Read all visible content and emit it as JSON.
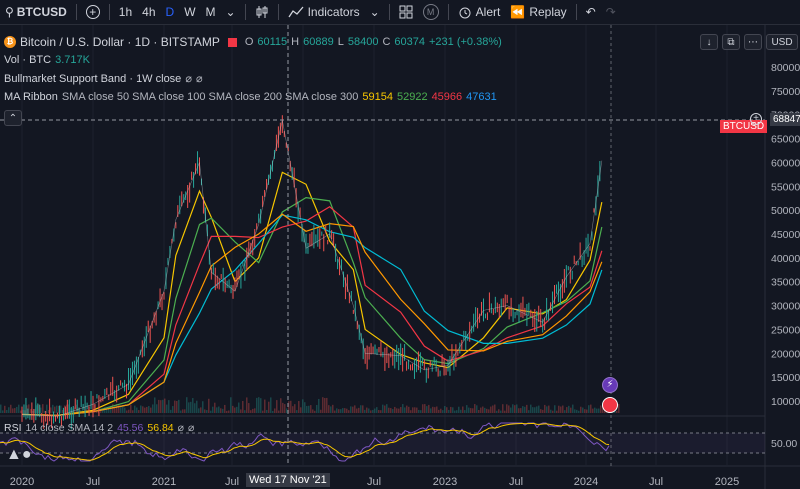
{
  "toolbar": {
    "symbol": "BTCUSD",
    "intervals": [
      "1h",
      "4h",
      "D",
      "W",
      "M"
    ],
    "active_interval": "D",
    "indicators_label": "Indicators",
    "alert_label": "Alert",
    "replay_label": "Replay",
    "currency": "USD"
  },
  "legend": {
    "title": "Bitcoin / U.S. Dollar · 1D · BITSTAMP",
    "ohlc": {
      "o_label": "O",
      "o": "60115",
      "h_label": "H",
      "h": "60889",
      "l_label": "L",
      "l": "58400",
      "c_label": "C",
      "c": "60374",
      "change": "+231 (+0.38%)"
    },
    "vol_label": "Vol · BTC",
    "vol_value": "3.717K",
    "bull_band": "Bullmarket Support Band · 1W close",
    "ma_label": "MA Ribbon",
    "ma_params": "SMA close 50 SMA close 100 SMA close 200 SMA close 300",
    "ma_values": [
      "59154",
      "52922",
      "45966",
      "47631"
    ],
    "ma_colors": [
      "#f7c600",
      "#4caf50",
      "#f23645",
      "#2196f3"
    ],
    "empty_glyph": "⌀"
  },
  "rsi": {
    "label": "RSI",
    "params": "14 close SMA 14 2",
    "value1": "45.56",
    "value2": "56.84",
    "level": "50.00"
  },
  "price_axis": {
    "ticks": [
      "80000",
      "75000",
      "70000",
      "65000",
      "60000",
      "55000",
      "50000",
      "45000",
      "40000",
      "35000",
      "30000",
      "25000",
      "20000",
      "15000",
      "10000"
    ],
    "crosshair_label": "68847",
    "btc_tag": "BTCUSD"
  },
  "time_axis": {
    "ticks": [
      "2020",
      "Jul",
      "2021",
      "Jul",
      "2022",
      "Jul",
      "2023",
      "Jul",
      "2024",
      "Jul",
      "2025"
    ],
    "crosshair_label": "Wed 17 Nov '21"
  },
  "colors": {
    "up": "#26a69a",
    "down": "#ef5350",
    "price_red": "#f23645",
    "bg": "#131722",
    "grid": "#2a2e39",
    "rsi": "#7e57c2",
    "accent": "#2962ff"
  },
  "chart_data": {
    "type": "line",
    "title": "Bitcoin / U.S. Dollar · 1D · BITSTAMP",
    "xlabel": "",
    "ylabel": "",
    "ylim": [
      0,
      82000
    ],
    "scale": "log",
    "x": [
      "2020-01",
      "2020-04",
      "2020-07",
      "2020-10",
      "2021-01",
      "2021-02",
      "2021-04",
      "2021-05",
      "2021-07",
      "2021-09",
      "2021-11",
      "2022-01",
      "2022-03",
      "2022-05",
      "2022-06",
      "2022-09",
      "2022-11",
      "2023-01",
      "2023-04",
      "2023-06",
      "2023-09",
      "2023-11",
      "2024-01",
      "2024-02"
    ],
    "series": [
      {
        "name": "BTCUSD",
        "values": [
          7200,
          6800,
          9300,
          13500,
          33000,
          48000,
          60000,
          37000,
          33000,
          47000,
          68847,
          42000,
          45000,
          30000,
          20000,
          19500,
          16500,
          17500,
          29000,
          30000,
          26500,
          36000,
          43000,
          60374
        ]
      }
    ]
  }
}
